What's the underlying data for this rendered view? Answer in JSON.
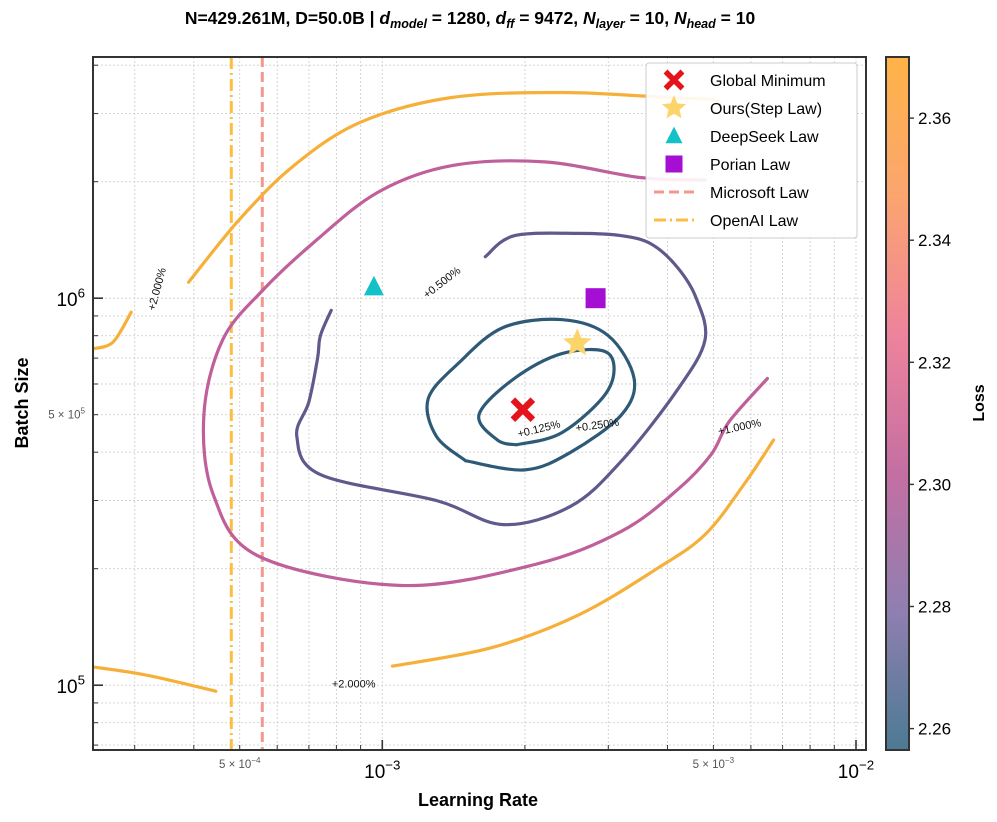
{
  "chart_data": {
    "type": "contour",
    "title_parts": {
      "prefix": "N=429.261M, D=50.0B | ",
      "dmodel_sym": "d",
      "dmodel_sub": "model",
      "dmodel_val": " = 1280, ",
      "dff_sym": "d",
      "dff_sub": "ff",
      "dff_val": " = 9472, ",
      "nlayer_sym": "N",
      "nlayer_sub": "layer",
      "nlayer_val": " = 10, ",
      "nhead_sym": "N",
      "nhead_sub": "head",
      "nhead_val": " = 10"
    },
    "xlabel": "Learning Rate",
    "ylabel": "Batch Size",
    "xscale": "log",
    "yscale": "log",
    "xlim": [
      0.000245,
      0.0105
    ],
    "ylim": [
      68000,
      4200000
    ],
    "x_major_ticks": [
      {
        "value": 0.001,
        "base": "10",
        "exp": "−3"
      },
      {
        "value": 0.01,
        "base": "10",
        "exp": "−2"
      }
    ],
    "y_major_ticks": [
      {
        "value": 100000,
        "base": "10",
        "exp": "5"
      },
      {
        "value": 1000000,
        "base": "10",
        "exp": "6"
      }
    ],
    "x_minor_labels": [
      {
        "value": 0.0005,
        "mant": "5 × 10",
        "exp": "−4"
      },
      {
        "value": 0.005,
        "mant": "5 × 10",
        "exp": "−3"
      }
    ],
    "y_minor_labels": [
      {
        "value": 500000,
        "mant": "5 × 10",
        "exp": "5"
      }
    ],
    "grid": true,
    "colorbar": {
      "label": "Loss",
      "min": 2.2565,
      "max": 2.37,
      "ticks": [
        "2.26",
        "2.28",
        "2.30",
        "2.32",
        "2.34",
        "2.36"
      ],
      "tick_values": [
        2.26,
        2.28,
        2.3,
        2.32,
        2.34,
        2.36
      ],
      "stops": [
        "#4c7a93",
        "#8f7fb0",
        "#c46fa3",
        "#ee839c",
        "#fba56f",
        "#ffb347"
      ]
    },
    "contours": [
      {
        "label": "+0.125%",
        "color": "#2e5a78",
        "points": [
          [
            0.00192,
            0.418
          ],
          [
            0.0024,
            0.45
          ],
          [
            0.003,
            0.58
          ],
          [
            0.003,
            0.72
          ],
          [
            0.0024,
            0.72
          ],
          [
            0.0019,
            0.62
          ],
          [
            0.0016,
            0.5
          ],
          [
            0.00175,
            0.43
          ],
          [
            0.00192,
            0.418
          ]
        ]
      },
      {
        "label": "+0.250%",
        "color": "#2e5a78",
        "points": [
          [
            0.0015,
            0.38
          ],
          [
            0.002,
            0.36
          ],
          [
            0.0025,
            0.4
          ],
          [
            0.0032,
            0.5
          ],
          [
            0.0034,
            0.62
          ],
          [
            0.003,
            0.8
          ],
          [
            0.0024,
            0.88
          ],
          [
            0.0018,
            0.84
          ],
          [
            0.00145,
            0.68
          ],
          [
            0.00125,
            0.55
          ],
          [
            0.0013,
            0.44
          ],
          [
            0.0015,
            0.38
          ]
        ]
      },
      {
        "label": "+0.500%",
        "color": "#5e5a8c",
        "points": [
          [
            0.00078,
            0.93
          ],
          [
            0.00074,
            0.8
          ],
          [
            0.00073,
            0.7
          ],
          [
            0.0007,
            0.54
          ],
          [
            0.00066,
            0.44
          ],
          [
            0.00074,
            0.35
          ],
          [
            0.0013,
            0.3
          ],
          [
            0.0018,
            0.26
          ],
          [
            0.0025,
            0.29
          ],
          [
            0.0032,
            0.38
          ],
          [
            0.0042,
            0.58
          ],
          [
            0.0048,
            0.78
          ],
          [
            0.0046,
            1.0
          ],
          [
            0.0042,
            1.2
          ],
          [
            0.0037,
            1.38
          ],
          [
            0.0032,
            1.45
          ],
          [
            0.0026,
            1.47
          ],
          [
            0.0019,
            1.45
          ],
          [
            0.00165,
            1.28
          ]
        ]
      },
      {
        "label": "+1.000%",
        "color": "#c0609a",
        "points": [
          [
            0.0065,
            0.62
          ],
          [
            0.0054,
            0.48
          ],
          [
            0.00495,
            0.395
          ],
          [
            0.0042,
            0.32
          ],
          [
            0.0032,
            0.25
          ],
          [
            0.0021,
            0.205
          ],
          [
            0.0011,
            0.181
          ],
          [
            0.00055,
            0.215
          ],
          [
            0.00044,
            0.31
          ],
          [
            0.00042,
            0.5
          ],
          [
            0.00046,
            0.78
          ],
          [
            0.00056,
            1.05
          ],
          [
            0.00072,
            1.4
          ],
          [
            0.00098,
            1.88
          ],
          [
            0.0014,
            2.2
          ],
          [
            0.0022,
            2.25
          ],
          [
            0.0035,
            2.05
          ],
          [
            0.0048,
            2.02
          ]
        ]
      },
      {
        "label": "+2.000%",
        "color": "#f6b03a",
        "points": [
          [
            0.000245,
            0.74
          ],
          [
            0.00027,
            0.77
          ],
          [
            0.000295,
            0.92
          ]
        ]
      },
      {
        "label": "+2.000%",
        "color": "#f6b03a",
        "points": [
          [
            0.00039,
            1.1
          ],
          [
            0.0005,
            1.6
          ],
          [
            0.00065,
            2.2
          ],
          [
            0.0009,
            2.85
          ],
          [
            0.0014,
            3.3
          ],
          [
            0.0024,
            3.4
          ],
          [
            0.004,
            3.3
          ],
          [
            0.005,
            3.25
          ],
          [
            0.0052,
            3.1
          ]
        ]
      },
      {
        "label": "+2.000%",
        "color": "#f6b03a",
        "points": [
          [
            0.000245,
            0.1115
          ],
          [
            0.00032,
            0.106
          ],
          [
            0.000445,
            0.0965
          ]
        ]
      },
      {
        "label": "+2.000%",
        "color": "#f6b03a",
        "points": [
          [
            0.00105,
            0.112
          ],
          [
            0.0017,
            0.125
          ],
          [
            0.0026,
            0.152
          ],
          [
            0.0038,
            0.2
          ],
          [
            0.0048,
            0.245
          ],
          [
            0.0058,
            0.33
          ],
          [
            0.0067,
            0.43
          ]
        ]
      }
    ],
    "contour_labels": [
      {
        "text": "+0.125%",
        "lr": 0.00215,
        "bs": 0.45,
        "angle": -14
      },
      {
        "text": "+0.250%",
        "lr": 0.00285,
        "bs": 0.46,
        "angle": -8
      },
      {
        "text": "+0.500%",
        "lr": 0.00135,
        "bs": 1.08,
        "angle": -38
      },
      {
        "text": "+1.000%",
        "lr": 0.0057,
        "bs": 0.455,
        "angle": -12
      },
      {
        "text": "+2.000%",
        "lr": 0.00034,
        "bs": 1.05,
        "angle": -75
      },
      {
        "text": "+2.000%",
        "lr": 0.00087,
        "bs": 0.0985,
        "angle": 0
      }
    ],
    "markers": [
      {
        "name": "Global Minimum",
        "shape": "x",
        "color": "#e5141c",
        "lr": 0.00198,
        "bs": 0.515
      },
      {
        "name": "Ours(Step Law)",
        "shape": "star",
        "color": "#fbd46a",
        "lr": 0.00258,
        "bs": 0.765
      },
      {
        "name": "DeepSeek Law",
        "shape": "triangle",
        "color": "#14c1c6",
        "lr": 0.00096,
        "bs": 1.07
      },
      {
        "name": "Porian Law",
        "shape": "square",
        "color": "#a50fd4",
        "lr": 0.00282,
        "bs": 1.0
      }
    ],
    "vlines": [
      {
        "name": "Microsoft Law",
        "color": "#f5978b",
        "style": "dash",
        "lr": 0.000558
      },
      {
        "name": "OpenAI Law",
        "color": "#fbbd44",
        "style": "dashdot",
        "lr": 0.00048
      }
    ],
    "legend": {
      "position": "top-right",
      "entries": [
        "Global Minimum",
        "Ours(Step Law)",
        "DeepSeek Law",
        "Porian Law",
        "Microsoft Law",
        "OpenAI Law"
      ]
    }
  }
}
